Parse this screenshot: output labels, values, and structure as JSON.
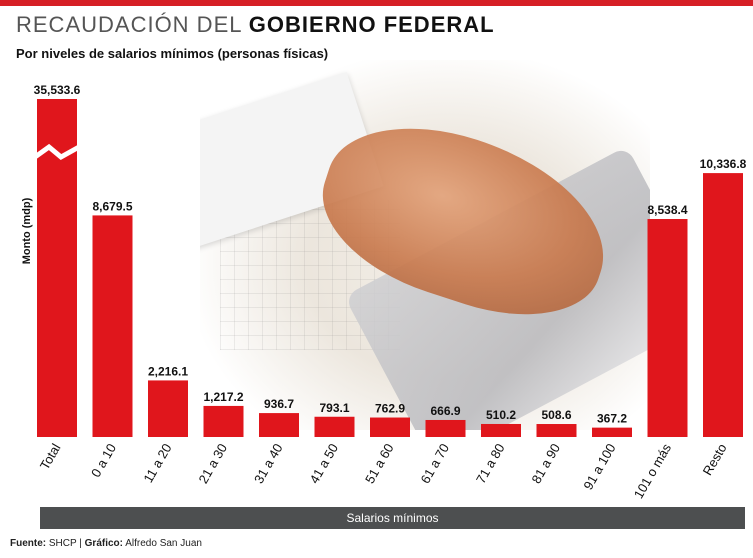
{
  "header": {
    "title_light": "RECAUDACIÓN DEL",
    "title_bold": "GOBIERNO FEDERAL",
    "subtitle": "Por niveles de salarios mínimos (personas físicas)"
  },
  "colors": {
    "accent": "#d61f26",
    "bar": "#e0161c",
    "band": "#4d4f50"
  },
  "chart_data": {
    "type": "bar",
    "categories": [
      "Total",
      "0 a 10",
      "11 a 20",
      "21 a 30",
      "31 a 40",
      "41 a 50",
      "51 a 60",
      "61 a 70",
      "71 a 80",
      "81 a 90",
      "91 a 100",
      "101 o más",
      "Resto"
    ],
    "values": [
      35533.6,
      8679.5,
      2216.1,
      1217.2,
      936.7,
      793.1,
      762.9,
      666.9,
      510.2,
      508.6,
      367.2,
      8538.4,
      10336.8
    ],
    "value_labels": [
      "35,533.6",
      "8,679.5",
      "2,216.1",
      "1,217.2",
      "936.7",
      "793.1",
      "762.9",
      "666.9",
      "510.2",
      "508.6",
      "367.2",
      "8,538.4",
      "10,336.8"
    ],
    "title": "RECAUDACIÓN DEL GOBIERNO FEDERAL",
    "subtitle": "Por niveles de salarios mínimos (personas físicas)",
    "xlabel": "Salarios mínimos",
    "ylabel": "Monto (mdp)",
    "axis_break": "Total",
    "grid": false,
    "legend": "none"
  },
  "footer": {
    "source_label": "Fuente:",
    "source_value": "SHCP |",
    "graphic_label": "Gráfico:",
    "graphic_value": "Alfredo San Juan"
  }
}
